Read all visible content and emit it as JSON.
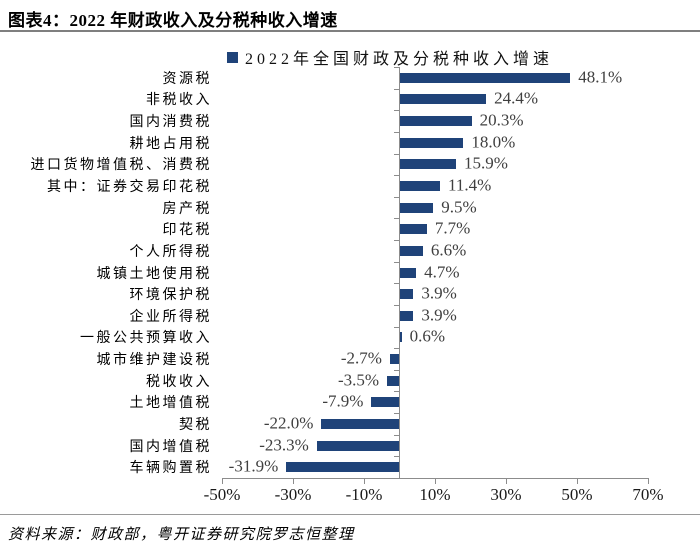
{
  "header": {
    "title": "图表4：2022 年财政收入及分税种收入增速"
  },
  "legend": {
    "marker_color": "#1F4379",
    "label": "2022年全国财政及分税种收入增速"
  },
  "footer": {
    "source": "资料来源：财政部，粤开证券研究院罗志恒整理"
  },
  "colors": {
    "bar": "#1F4379",
    "axis": "#8c8c8c",
    "value_label": "#3f3f3f"
  },
  "chart_data": {
    "type": "bar",
    "orientation": "horizontal",
    "title": "2022年全国财政及分税种收入增速",
    "legend_position": "top",
    "grid": false,
    "categories": [
      "资源税",
      "非税收入",
      "国内消费税",
      "耕地占用税",
      "进口货物增值税、消费税",
      "其中：证券交易印花税",
      "房产税",
      "印花税",
      "个人所得税",
      "城镇土地使用税",
      "环境保护税",
      "企业所得税",
      "一般公共预算收入",
      "城市维护建设税",
      "税收收入",
      "土地增值税",
      "契税",
      "国内增值税",
      "车辆购置税"
    ],
    "values": [
      48.1,
      24.4,
      20.3,
      18.0,
      15.9,
      11.4,
      9.5,
      7.7,
      6.6,
      4.7,
      3.9,
      3.9,
      0.6,
      -2.7,
      -3.5,
      -7.9,
      -22.0,
      -23.3,
      -31.9
    ],
    "value_labels": [
      "48.1%",
      "24.4%",
      "20.3%",
      "18.0%",
      "15.9%",
      "11.4%",
      "9.5%",
      "7.7%",
      "6.6%",
      "4.7%",
      "3.9%",
      "3.9%",
      "0.6%",
      "-2.7%",
      "-3.5%",
      "-7.9%",
      "-22.0%",
      "-23.3%",
      "-31.9%"
    ],
    "xlabel": "",
    "ylabel": "",
    "xlim": [
      -50,
      70
    ],
    "xtick_values": [
      -50,
      -30,
      -10,
      10,
      30,
      50,
      70
    ],
    "xtick_labels": [
      "-50%",
      "-30%",
      "-10%",
      "10%",
      "30%",
      "50%",
      "70%"
    ]
  }
}
